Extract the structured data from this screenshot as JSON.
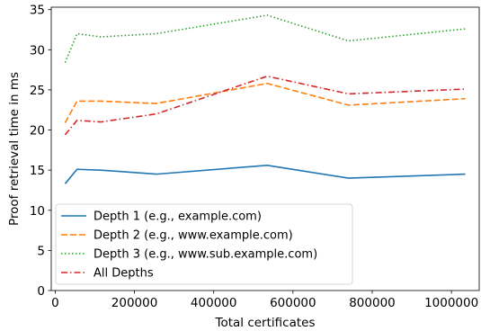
{
  "chart_data": {
    "type": "line",
    "xlabel": "Total certificates",
    "ylabel": "Proof retrieval time in ms",
    "xlim": [
      -10000,
      1070000
    ],
    "ylim": [
      0,
      35.3
    ],
    "x_ticks": [
      0,
      200000,
      400000,
      600000,
      800000,
      1000000
    ],
    "x_tick_labels": [
      "0",
      "200000",
      "400000",
      "600000",
      "800000",
      "1000000"
    ],
    "y_ticks": [
      0,
      5,
      10,
      15,
      20,
      25,
      30,
      35
    ],
    "y_tick_labels": [
      "0",
      "5",
      "10",
      "15",
      "20",
      "25",
      "30",
      "35"
    ],
    "grid": false,
    "legend_position": "lower-left",
    "series": [
      {
        "name": "Depth 1 (e.g., example.com)",
        "color": "#1f77b4",
        "dash": "solid",
        "x": [
          25000,
          55000,
          115000,
          255000,
          535000,
          740000,
          1035000
        ],
        "values": [
          13.3,
          15.1,
          15.0,
          14.5,
          15.6,
          14.0,
          14.5
        ]
      },
      {
        "name": "Depth 2 (e.g., www.example.com)",
        "color": "#ff7f0e",
        "dash": "dashed",
        "x": [
          25000,
          55000,
          115000,
          255000,
          535000,
          740000,
          1035000
        ],
        "values": [
          20.9,
          23.6,
          23.6,
          23.3,
          25.8,
          23.1,
          23.9
        ]
      },
      {
        "name": "Depth 3 (e.g., www.sub.example.com)",
        "color": "#2ca02c",
        "dash": "dotted",
        "x": [
          25000,
          55000,
          115000,
          255000,
          535000,
          740000,
          1035000
        ],
        "values": [
          28.4,
          32.0,
          31.6,
          32.0,
          34.3,
          31.1,
          32.6
        ]
      },
      {
        "name": "All Depths",
        "color": "#d62728",
        "dash": "dashdot",
        "x": [
          25000,
          55000,
          115000,
          255000,
          535000,
          740000,
          1035000
        ],
        "values": [
          19.4,
          21.2,
          21.0,
          22.0,
          26.7,
          24.5,
          25.1
        ]
      }
    ]
  }
}
